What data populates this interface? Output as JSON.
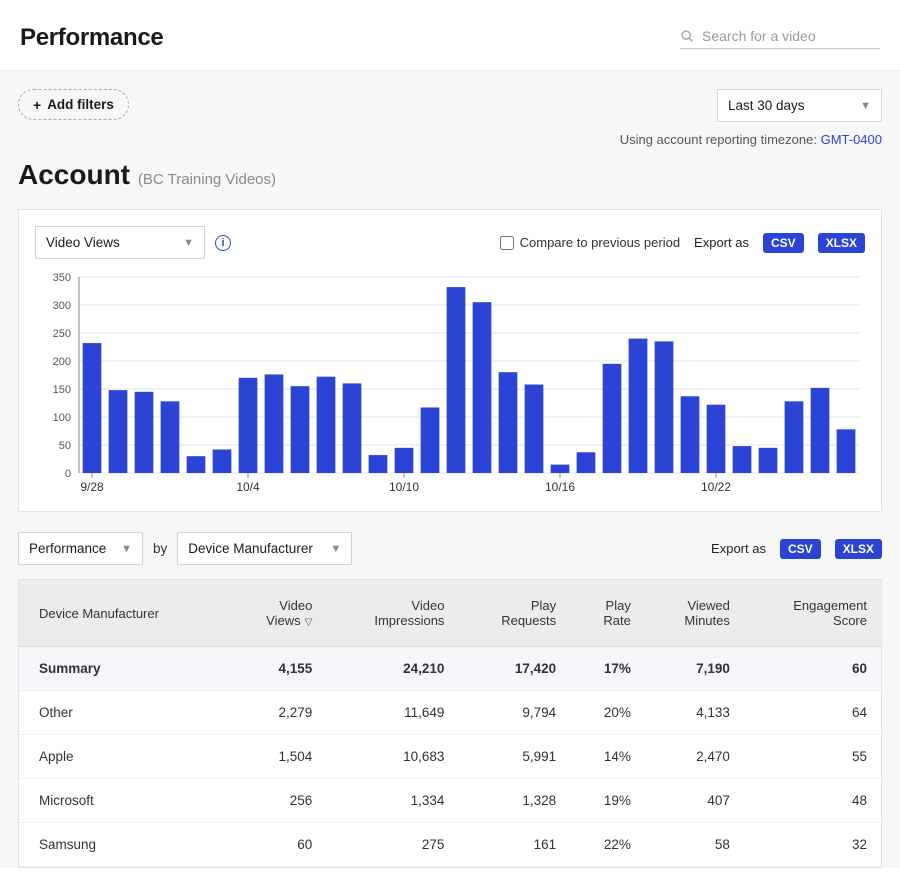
{
  "header": {
    "title": "Performance",
    "search_placeholder": "Search for a video"
  },
  "filters": {
    "add_filters_label": "Add filters",
    "date_range_label": "Last 30 days",
    "timezone_prefix": "Using account reporting timezone: ",
    "timezone_value": "GMT-0400"
  },
  "account": {
    "heading": "Account",
    "subtitle": "(BC Training Videos)"
  },
  "chart": {
    "metric_select_label": "Video Views",
    "compare_label": "Compare to previous period",
    "export_label": "Export as",
    "csv_label": "CSV",
    "xlsx_label": "XLSX",
    "type": "bar",
    "y_axis": {
      "min": 0,
      "max": 350,
      "step": 50
    },
    "x_ticks": [
      {
        "index": 0,
        "label": "9/28"
      },
      {
        "index": 6,
        "label": "10/4"
      },
      {
        "index": 12,
        "label": "10/10"
      },
      {
        "index": 18,
        "label": "10/16"
      },
      {
        "index": 24,
        "label": "10/22"
      }
    ],
    "values": [
      232,
      148,
      145,
      128,
      30,
      42,
      170,
      176,
      155,
      172,
      160,
      32,
      45,
      117,
      332,
      305,
      180,
      158,
      15,
      37,
      195,
      240,
      235,
      137,
      122,
      48,
      45,
      128,
      152,
      78
    ],
    "bar_color": "#2b44d6",
    "grid_color": "#e5e5e5",
    "axis_color": "#888888",
    "background_color": "#ffffff"
  },
  "table": {
    "toolbar": {
      "left_select_label": "Performance",
      "by_label": "by",
      "group_select_label": "Device Manufacturer",
      "export_label": "Export as",
      "csv_label": "CSV",
      "xlsx_label": "XLSX"
    },
    "columns": [
      {
        "key": "name",
        "label": "Device Manufacturer",
        "align": "left"
      },
      {
        "key": "views",
        "label": "Video Views",
        "align": "right",
        "sorted": "desc"
      },
      {
        "key": "impressions",
        "label": "Video Impressions",
        "align": "right"
      },
      {
        "key": "play_requests",
        "label": "Play Requests",
        "align": "right"
      },
      {
        "key": "play_rate",
        "label": "Play Rate",
        "align": "right"
      },
      {
        "key": "viewed_min",
        "label": "Viewed Minutes",
        "align": "right"
      },
      {
        "key": "engagement",
        "label": "Engagement Score",
        "align": "right"
      }
    ],
    "summary": {
      "name": "Summary",
      "views": "4,155",
      "impressions": "24,210",
      "play_requests": "17,420",
      "play_rate": "17%",
      "viewed_min": "7,190",
      "engagement": "60"
    },
    "rows": [
      {
        "name": "Other",
        "views": "2,279",
        "impressions": "11,649",
        "play_requests": "9,794",
        "play_rate": "20%",
        "viewed_min": "4,133",
        "engagement": "64"
      },
      {
        "name": "Apple",
        "views": "1,504",
        "impressions": "10,683",
        "play_requests": "5,991",
        "play_rate": "14%",
        "viewed_min": "2,470",
        "engagement": "55"
      },
      {
        "name": "Microsoft",
        "views": "256",
        "impressions": "1,334",
        "play_requests": "1,328",
        "play_rate": "19%",
        "viewed_min": "407",
        "engagement": "48"
      },
      {
        "name": "Samsung",
        "views": "60",
        "impressions": "275",
        "play_requests": "161",
        "play_rate": "22%",
        "viewed_min": "58",
        "engagement": "32"
      }
    ]
  }
}
